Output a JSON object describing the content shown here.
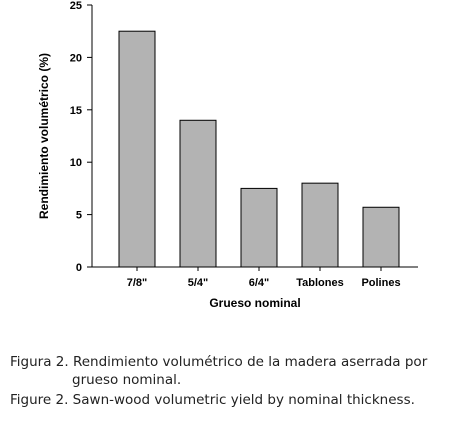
{
  "chart_data": {
    "type": "bar",
    "categories": [
      "7/8\"",
      "5/4\"",
      "6/4\"",
      "Tablones",
      "Polines"
    ],
    "values": [
      22.5,
      14.0,
      7.5,
      8.0,
      5.7
    ],
    "ylim": [
      0,
      25
    ],
    "yticks": [
      "0",
      "5",
      "10",
      "15",
      "20",
      "25"
    ],
    "xlabel": "Grueso nominal",
    "ylabel": "Rendimiento volumétrico (%)",
    "bar_color": "#b3b3b3",
    "bar_edge_color": "#000000",
    "grid": false
  },
  "caption": {
    "line1": "Figura 2. Rendimiento volumétrico de la madera aserrada por",
    "line2": "grueso nominal.",
    "line3": "Figure 2. Sawn-wood volumetric yield by nominal thickness."
  }
}
